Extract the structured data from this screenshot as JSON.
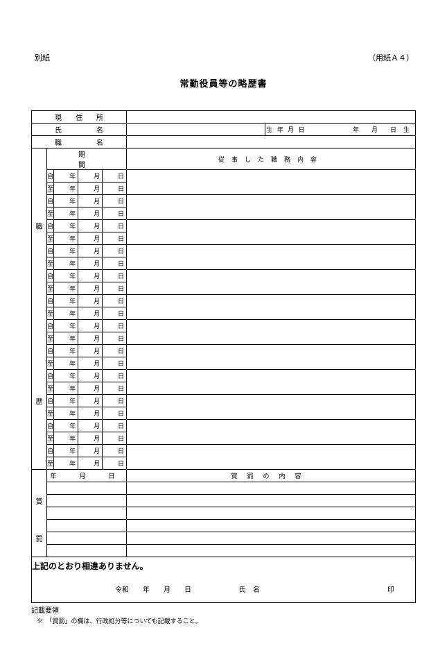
{
  "header": {
    "top_left": "別紙",
    "top_right": "（用紙Ａ４）",
    "title": "常勤役員等の略歴書"
  },
  "labels": {
    "address": "現　　住　　所",
    "name": "氏　　　　　名",
    "birth_prefix": "生 年 月 日",
    "birth_ymd": "年　　月　　日",
    "birth_suffix": "生",
    "position": "職　　　　　名",
    "period": "期　　　間",
    "career_desc": "従事した職務内容",
    "from": "自",
    "to": "至",
    "year": "年",
    "month": "月",
    "day": "日",
    "career_v1": "職",
    "career_v2": "歴",
    "reward_v1": "賞",
    "reward_v2": "罰",
    "ymd_header": "年　月　日",
    "reward_header": "賞罰の内容",
    "declaration": "上記のとおり相違ありません。",
    "era": "令和　　年　　月　　日",
    "sig_name": "氏 名",
    "seal": "印"
  },
  "footer": {
    "heading": "記載要領",
    "note": "※　「賞罰」の欄は、行政処分等についても記載すること。"
  },
  "layout": {
    "career_pairs": 12,
    "reward_rows_1": 3,
    "reward_rows_2": 3
  }
}
